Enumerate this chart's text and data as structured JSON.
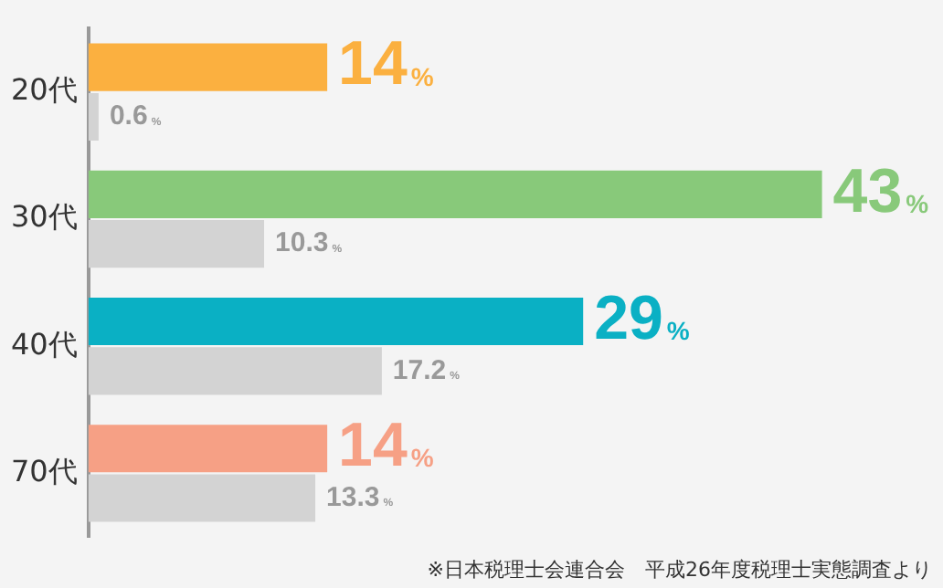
{
  "chart_data": {
    "type": "bar",
    "orientation": "horizontal",
    "tick_labels": "y",
    "categories": [
      "20代",
      "30代",
      "40代",
      "70代"
    ],
    "series": [
      {
        "colors": [
          "#fbb040",
          "#88c97a",
          "#0ab0c4",
          "#f6a085"
        ],
        "values": [
          14,
          43,
          29,
          14
        ],
        "value_labels": [
          "14%",
          "43%",
          "29%",
          "14%"
        ]
      },
      {
        "color": "#d3d3d3",
        "values": [
          0.6,
          10.3,
          17.2,
          13.3
        ],
        "value_labels": [
          "0.6%",
          "10.3%",
          "17.2%",
          "13.3%"
        ]
      }
    ],
    "annotations": [
      "※日本税理士会連合会　平成26年度税理士実態調査より"
    ],
    "legend": false
  }
}
